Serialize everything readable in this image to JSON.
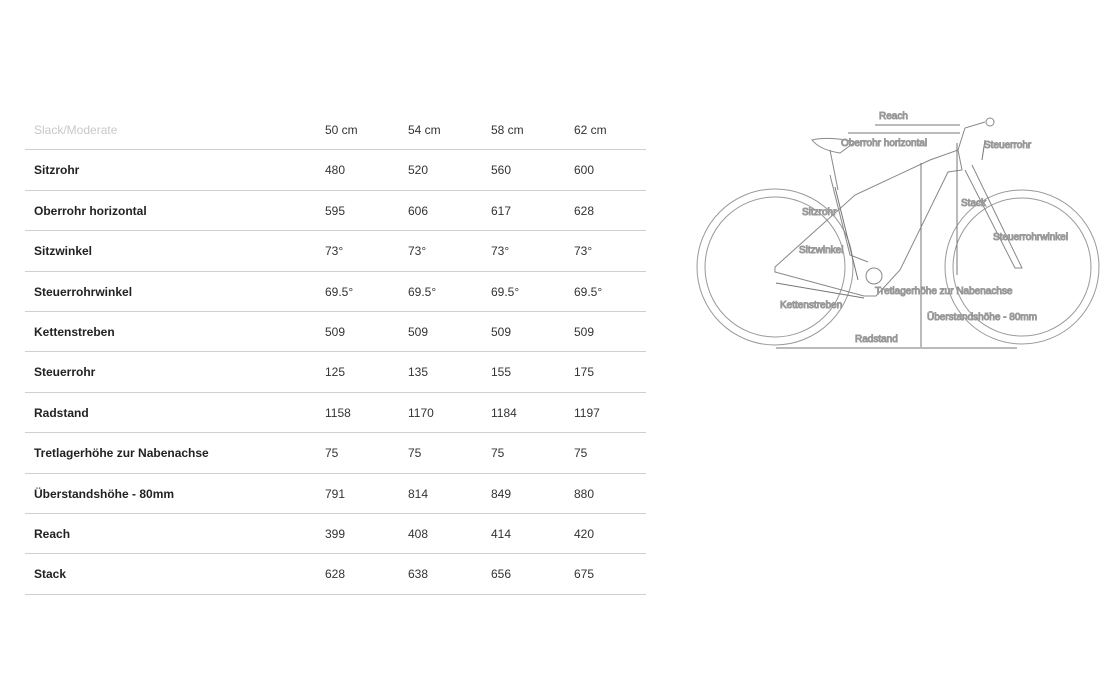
{
  "table": {
    "header": {
      "label": "Slack/Moderate",
      "sizes": [
        "50 cm",
        "54 cm",
        "58 cm",
        "62 cm"
      ]
    },
    "rows": [
      {
        "label": "Sitzrohr",
        "values": [
          "480",
          "520",
          "560",
          "600"
        ]
      },
      {
        "label": "Oberrohr horizontal",
        "values": [
          "595",
          "606",
          "617",
          "628"
        ]
      },
      {
        "label": "Sitzwinkel",
        "values": [
          "73°",
          "73°",
          "73°",
          "73°"
        ]
      },
      {
        "label": "Steuerrohrwinkel",
        "values": [
          "69.5°",
          "69.5°",
          "69.5°",
          "69.5°"
        ]
      },
      {
        "label": "Kettenstreben",
        "values": [
          "509",
          "509",
          "509",
          "509"
        ]
      },
      {
        "label": "Steuerrohr",
        "values": [
          "125",
          "135",
          "155",
          "175"
        ]
      },
      {
        "label": "Radstand",
        "values": [
          "1158",
          "1170",
          "1184",
          "1197"
        ]
      },
      {
        "label": "Tretlagerhöhe zur Nabenachse",
        "values": [
          "75",
          "75",
          "75",
          "75"
        ]
      },
      {
        "label": "Überstandshöhe - 80mm",
        "values": [
          "791",
          "814",
          "849",
          "880"
        ]
      },
      {
        "label": "Reach",
        "values": [
          "399",
          "408",
          "414",
          "420"
        ]
      },
      {
        "label": "Stack",
        "values": [
          "628",
          "638",
          "656",
          "675"
        ]
      }
    ]
  },
  "diagram": {
    "labels": {
      "reach": "Reach",
      "oberrohr": "Oberrohr horizontal",
      "steuerrohr": "Steuerrohr",
      "stack": "Stack",
      "sitzrohr": "Sitzrohr",
      "sitzwinkel": "Sitzwinkel",
      "steuerrohrwinkel": "Steuerrohrwinkel",
      "tretlager": "Tretlagerhöhe zur Nabenachse",
      "kettenstreben": "Kettenstreben",
      "ueberstand": "Überstandshöhe - 80mm",
      "radstand": "Radstand"
    }
  }
}
